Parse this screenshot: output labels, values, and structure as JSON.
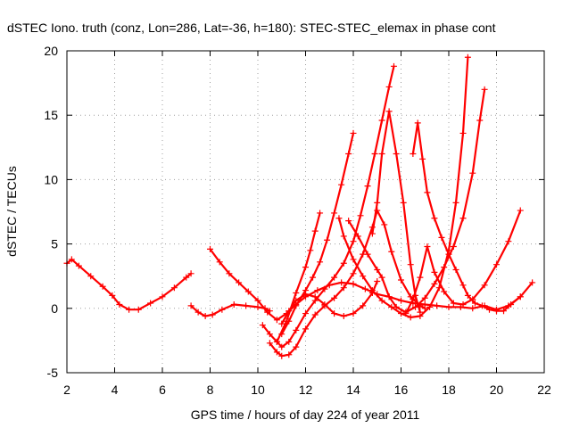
{
  "chart_data": {
    "type": "scatter",
    "title": "dSTEC Iono. truth (conz, Lon=286, Lat=-36, h=180): STEC-STEC_elemax in phase cont",
    "xlabel": "GPS time / hours of day 224 of year 2011",
    "ylabel": "dSTEC  / TECUs",
    "xlim": [
      2,
      22
    ],
    "ylim": [
      -5,
      20
    ],
    "xticks": [
      2,
      4,
      6,
      8,
      10,
      12,
      14,
      16,
      18,
      20,
      22
    ],
    "yticks": [
      -5,
      0,
      5,
      10,
      15,
      20
    ],
    "grid": true,
    "marker": "+",
    "color": "#ff0000",
    "series": [
      {
        "x": [
          2.0,
          2.2,
          2.5,
          3.0,
          3.5,
          3.9,
          4.2,
          4.6,
          5.0,
          5.5,
          6.0,
          6.5,
          7.0,
          7.2
        ],
        "y": [
          3.5,
          3.8,
          3.3,
          2.5,
          1.7,
          1.0,
          0.3,
          -0.1,
          -0.1,
          0.4,
          0.9,
          1.6,
          2.4,
          2.7
        ]
      },
      {
        "x": [
          7.2,
          7.5,
          7.8,
          8.1,
          8.5,
          9.0,
          9.5,
          10.0,
          10.3,
          10.5
        ],
        "y": [
          0.2,
          -0.3,
          -0.6,
          -0.5,
          -0.1,
          0.3,
          0.2,
          0.1,
          0.0,
          -0.2
        ]
      },
      {
        "x": [
          8.0,
          8.4,
          8.8,
          9.2,
          9.6,
          10.0,
          10.4,
          10.8,
          11.2,
          11.6,
          12.0,
          12.5,
          13.0,
          13.5,
          14.0,
          14.5,
          15.0,
          15.5,
          16.0,
          16.5,
          17.0,
          17.5,
          18.0,
          18.5,
          19.0,
          19.5,
          20.0,
          20.5,
          21.0,
          21.5
        ],
        "y": [
          4.6,
          3.6,
          2.7,
          2.0,
          1.3,
          0.6,
          -0.3,
          -0.9,
          -0.4,
          0.3,
          0.9,
          1.4,
          1.8,
          2.0,
          1.9,
          1.5,
          1.1,
          0.9,
          0.6,
          0.4,
          0.3,
          0.2,
          0.1,
          0.1,
          0.0,
          0.2,
          -0.1,
          0.2,
          0.9,
          2.0
        ]
      },
      {
        "x": [
          10.2,
          10.5,
          10.8,
          11.0,
          11.3,
          11.6,
          12.0,
          12.4,
          12.8,
          13.2,
          13.6,
          14.0,
          14.3,
          14.6,
          14.9,
          15.2,
          15.5,
          15.7
        ],
        "y": [
          -1.3,
          -2.0,
          -2.6,
          -3.0,
          -2.6,
          -1.7,
          -0.4,
          0.6,
          1.5,
          2.4,
          3.5,
          5.2,
          7.2,
          9.5,
          12.0,
          14.6,
          17.2,
          18.8
        ]
      },
      {
        "x": [
          10.5,
          10.8,
          11.0,
          11.3,
          11.6,
          12.0,
          12.4,
          12.8,
          13.2,
          13.6,
          14.0,
          14.4,
          14.8,
          15.0,
          15.3,
          15.6,
          16.0,
          16.4,
          16.8,
          17.0
        ],
        "y": [
          -2.7,
          -3.4,
          -3.7,
          -3.6,
          -3.0,
          -1.6,
          -0.5,
          0.2,
          0.8,
          1.6,
          2.7,
          4.2,
          6.3,
          7.6,
          6.5,
          4.4,
          2.2,
          0.9,
          0.2,
          0.0
        ]
      },
      {
        "x": [
          11.0,
          11.3,
          11.6,
          12.0,
          12.3,
          12.6,
          12.9,
          13.2,
          13.5,
          13.8,
          14.0
        ],
        "y": [
          -2.0,
          -1.0,
          0.2,
          1.4,
          2.4,
          3.6,
          5.3,
          7.4,
          9.6,
          12.0,
          13.6
        ]
      },
      {
        "x": [
          11.0,
          11.3,
          11.6,
          12.0,
          12.4,
          12.8,
          13.2,
          13.6,
          14.0,
          14.4,
          14.8,
          15.0
        ],
        "y": [
          -1.2,
          -0.2,
          0.6,
          1.1,
          0.9,
          0.3,
          -0.4,
          -0.6,
          -0.4,
          0.2,
          1.2,
          2.1
        ]
      },
      {
        "x": [
          10.8,
          11.2,
          11.6,
          12.0,
          12.2,
          12.4,
          12.6
        ],
        "y": [
          -2.6,
          -1.0,
          1.2,
          3.2,
          4.5,
          6.0,
          7.4
        ]
      },
      {
        "x": [
          13.4,
          13.6,
          14.0,
          14.4,
          14.8,
          15.2,
          15.6,
          16.0,
          16.4,
          16.8,
          17.2,
          17.6,
          18.0,
          18.3,
          18.6,
          18.8
        ],
        "y": [
          7.0,
          5.6,
          3.8,
          2.5,
          1.4,
          0.6,
          0.1,
          -0.4,
          -0.7,
          -0.6,
          0.1,
          1.6,
          4.5,
          8.2,
          13.6,
          19.5
        ]
      },
      {
        "x": [
          13.8,
          14.2,
          14.6,
          15.0,
          15.2,
          15.5,
          15.8,
          16.2,
          16.6,
          17.0,
          17.4,
          17.8,
          18.2,
          18.6,
          19.0,
          19.3,
          19.5
        ],
        "y": [
          6.8,
          5.6,
          4.2,
          3.0,
          2.4,
          0.9,
          0.1,
          -0.3,
          0.1,
          0.8,
          1.9,
          3.2,
          4.8,
          7.0,
          10.5,
          14.6,
          17.0
        ]
      },
      {
        "x": [
          14.8,
          15.0,
          15.2,
          15.5,
          15.8,
          16.1,
          16.4,
          16.6,
          16.8
        ],
        "y": [
          5.8,
          8.2,
          12.0,
          15.3,
          12.0,
          8.2,
          3.4,
          1.0,
          -0.3
        ]
      },
      {
        "x": [
          16.2,
          16.5,
          16.8,
          17.1,
          17.4,
          17.8,
          18.2,
          18.6,
          19.0,
          19.5,
          20.0,
          20.5,
          21.0
        ],
        "y": [
          -0.4,
          0.7,
          2.4,
          4.8,
          2.8,
          1.3,
          0.4,
          0.3,
          0.7,
          1.8,
          3.4,
          5.2,
          7.6
        ]
      },
      {
        "x": [
          16.5,
          16.7,
          16.9,
          17.1,
          17.4,
          17.7,
          18.0,
          18.3,
          18.6,
          18.8,
          19.1,
          19.4,
          19.7,
          20.0,
          20.3,
          20.6,
          21.0
        ],
        "y": [
          12.0,
          14.4,
          11.6,
          9.0,
          7.0,
          5.5,
          4.2,
          3.0,
          1.8,
          1.0,
          0.4,
          0.2,
          -0.1,
          -0.2,
          -0.2,
          0.3,
          0.9
        ]
      }
    ]
  }
}
